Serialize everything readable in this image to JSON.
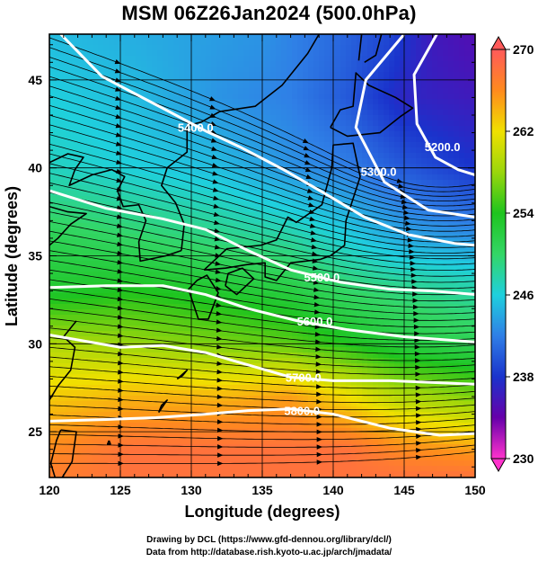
{
  "title": "MSM 06Z26Jan2024 (500.0hPa)",
  "chart_data": {
    "type": "heatmap",
    "title": "MSM 06Z26Jan2024 (500.0hPa)",
    "xlabel": "Longitude (degrees)",
    "ylabel": "Latitude  (degrees)",
    "xlim": [
      120,
      150
    ],
    "ylim": [
      22.4,
      47.6
    ],
    "x_ticks": [
      120,
      125,
      130,
      135,
      140,
      145,
      150
    ],
    "y_ticks": [
      25,
      30,
      35,
      40,
      45
    ],
    "grid": true,
    "colorbar": {
      "min": 230,
      "max": 270,
      "ticks": [
        230,
        238,
        246,
        254,
        262,
        270
      ],
      "stops": [
        {
          "value": 230,
          "color": "#ff33cc"
        },
        {
          "value": 234,
          "color": "#6600aa"
        },
        {
          "value": 238,
          "color": "#1a33cc"
        },
        {
          "value": 242,
          "color": "#2f7fe6"
        },
        {
          "value": 246,
          "color": "#1fd0dd"
        },
        {
          "value": 250,
          "color": "#33d666"
        },
        {
          "value": 254,
          "color": "#1ec41e"
        },
        {
          "value": 258,
          "color": "#9ad60c"
        },
        {
          "value": 262,
          "color": "#f0e000"
        },
        {
          "value": 266,
          "color": "#ff8a1e"
        },
        {
          "value": 270,
          "color": "#ff5a5a"
        }
      ]
    },
    "height_contours": [
      {
        "label": "5200.0",
        "points": [
          [
            147.3,
            47.6
          ],
          [
            145.7,
            45.3
          ],
          [
            145.9,
            42.5
          ],
          [
            147.2,
            40.6
          ],
          [
            148.8,
            39.9
          ],
          [
            150,
            39.6
          ]
        ],
        "label_at": [
          147.7,
          41.2
        ]
      },
      {
        "label": "5300.0",
        "points": [
          [
            145,
            47.6
          ],
          [
            142.3,
            45
          ],
          [
            141.6,
            42.3
          ],
          [
            143.6,
            39.2
          ],
          [
            146.7,
            37.6
          ],
          [
            150,
            37.2
          ]
        ],
        "label_at": [
          143.2,
          39.8
        ]
      },
      {
        "label": "5400.0",
        "points": [
          [
            120.8,
            47.6
          ],
          [
            123.7,
            45.2
          ],
          [
            128.2,
            43.3
          ],
          [
            131,
            42.1
          ],
          [
            133.4,
            41.2
          ],
          [
            136.5,
            39.9
          ],
          [
            139.5,
            38.5
          ],
          [
            142.2,
            37.2
          ],
          [
            145.3,
            36.2
          ],
          [
            148.6,
            35.7
          ],
          [
            150,
            35.6
          ]
        ],
        "label_at": [
          130.3,
          42.3
        ]
      },
      {
        "label": "5500.0",
        "points": [
          [
            120,
            38.7
          ],
          [
            124,
            37.7
          ],
          [
            128,
            37.1
          ],
          [
            131,
            36.5
          ],
          [
            134,
            35.3
          ],
          [
            137,
            34.2
          ],
          [
            140.5,
            33.5
          ],
          [
            144,
            33.1
          ],
          [
            147,
            33
          ],
          [
            150,
            32.8
          ]
        ],
        "label_at": [
          139.2,
          33.8
        ]
      },
      {
        "label": "5600.0",
        "points": [
          [
            120,
            33.2
          ],
          [
            124,
            33.3
          ],
          [
            128,
            33.3
          ],
          [
            131,
            32.8
          ],
          [
            134,
            32
          ],
          [
            137.5,
            31.3
          ],
          [
            141,
            30.8
          ],
          [
            145,
            30.4
          ],
          [
            150,
            30.1
          ]
        ],
        "label_at": [
          138.7,
          31.3
        ]
      },
      {
        "label": "5700.0",
        "points": [
          [
            120,
            30.5
          ],
          [
            125,
            29.8
          ],
          [
            128,
            29.9
          ],
          [
            131,
            29.5
          ],
          [
            134,
            28.8
          ],
          [
            137,
            28.1
          ],
          [
            140,
            27.9
          ],
          [
            144,
            27.9
          ],
          [
            150,
            27.7
          ]
        ],
        "label_at": [
          137.9,
          28.1
        ]
      },
      {
        "label": "5800.0",
        "points": [
          [
            120,
            25.6
          ],
          [
            124,
            25.7
          ],
          [
            127.5,
            25.8
          ],
          [
            131,
            26
          ],
          [
            134,
            26.2
          ],
          [
            137,
            26.3
          ],
          [
            140,
            26
          ],
          [
            144,
            25.2
          ],
          [
            147.5,
            24.8
          ],
          [
            150,
            24.9
          ]
        ],
        "label_at": [
          137.8,
          26.2
        ]
      }
    ],
    "temperature_field_K": [
      {
        "lat": 47.6,
        "values": [
          [
            120,
            245
          ],
          [
            128,
            244
          ],
          [
            135,
            243
          ],
          [
            140,
            241
          ],
          [
            144,
            239
          ],
          [
            147,
            236
          ],
          [
            150,
            235
          ]
        ]
      },
      {
        "lat": 44,
        "values": [
          [
            120,
            246
          ],
          [
            126,
            245
          ],
          [
            132,
            243
          ],
          [
            137,
            242
          ],
          [
            141,
            240
          ],
          [
            145,
            237
          ],
          [
            150,
            236
          ]
        ]
      },
      {
        "lat": 40,
        "values": [
          [
            120,
            247
          ],
          [
            126,
            246
          ],
          [
            132,
            245
          ],
          [
            137,
            243
          ],
          [
            141,
            242
          ],
          [
            145,
            240
          ],
          [
            150,
            238
          ]
        ]
      },
      {
        "lat": 36,
        "values": [
          [
            120,
            251
          ],
          [
            126,
            250
          ],
          [
            132,
            249
          ],
          [
            137,
            248
          ],
          [
            141,
            246
          ],
          [
            145,
            244
          ],
          [
            150,
            243
          ]
        ]
      },
      {
        "lat": 33,
        "values": [
          [
            120,
            253
          ],
          [
            126,
            254
          ],
          [
            132,
            253
          ],
          [
            137,
            252
          ],
          [
            141,
            250
          ],
          [
            145,
            249
          ],
          [
            150,
            248
          ]
        ]
      },
      {
        "lat": 30,
        "values": [
          [
            120,
            259
          ],
          [
            126,
            258
          ],
          [
            132,
            257
          ],
          [
            137,
            256
          ],
          [
            141,
            254
          ],
          [
            145,
            252
          ],
          [
            150,
            251
          ]
        ]
      },
      {
        "lat": 27,
        "values": [
          [
            120,
            263
          ],
          [
            126,
            264
          ],
          [
            132,
            264
          ],
          [
            137,
            265
          ],
          [
            141,
            262
          ],
          [
            145,
            259
          ],
          [
            150,
            257
          ]
        ]
      },
      {
        "lat": 24,
        "values": [
          [
            120,
            266
          ],
          [
            126,
            268
          ],
          [
            132,
            268
          ],
          [
            137,
            268
          ],
          [
            141,
            268
          ],
          [
            145,
            266
          ],
          [
            150,
            265
          ]
        ]
      },
      {
        "lat": 22.4,
        "values": [
          [
            120,
            267
          ],
          [
            126,
            268
          ],
          [
            132,
            268
          ],
          [
            137,
            268
          ],
          [
            141,
            268
          ],
          [
            145,
            268
          ],
          [
            150,
            268
          ]
        ]
      }
    ],
    "wind_streamlines": "westerly flow, with cyclonic curvature around a low near 147E 44N"
  },
  "footer": {
    "line1": "Drawing by DCL (https://www.gfd-dennou.org/library/dcl/)",
    "line2": "Data from http://database.rish.kyoto-u.ac.jp/arch/jmadata/"
  },
  "colors": {
    "contour": "#ffffff",
    "coast": "#000000",
    "streamline": "#000000",
    "grid": "#000000"
  }
}
